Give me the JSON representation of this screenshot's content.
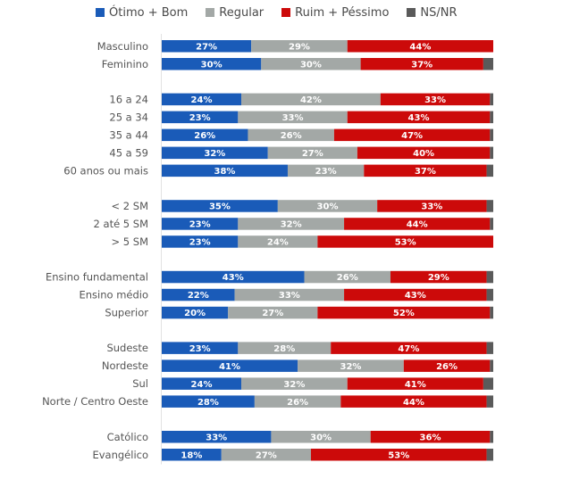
{
  "chart_data": {
    "type": "bar",
    "orientation": "horizontal",
    "stacked": true,
    "normalized": true,
    "title": "",
    "xlabel": "",
    "ylabel": "",
    "xlim": [
      0,
      100
    ],
    "grid": false,
    "legend_position": "top",
    "value_suffix": "%",
    "series": [
      {
        "name": "Ótimo + Bom",
        "color": "#1a5bb8",
        "show_labels": true
      },
      {
        "name": "Regular",
        "color": "#a3a8a6",
        "show_labels": true
      },
      {
        "name": "Ruim + Péssimo",
        "color": "#cc0a0a",
        "show_labels": true
      },
      {
        "name": "NS/NR",
        "color": "#5a5a5a",
        "show_labels": false
      }
    ],
    "groups": [
      {
        "rows": [
          {
            "label": "Masculino",
            "values": [
              27,
              29,
              44
            ]
          },
          {
            "label": "Feminino",
            "values": [
              30,
              30,
              37
            ]
          }
        ]
      },
      {
        "rows": [
          {
            "label": "16 a 24",
            "values": [
              24,
              42,
              33
            ]
          },
          {
            "label": "25 a 34",
            "values": [
              23,
              33,
              43
            ]
          },
          {
            "label": "35 a 44",
            "values": [
              26,
              26,
              47
            ]
          },
          {
            "label": "45 a 59",
            "values": [
              32,
              27,
              40
            ]
          },
          {
            "label": "60 anos ou mais",
            "values": [
              38,
              23,
              37
            ]
          }
        ]
      },
      {
        "rows": [
          {
            "label": "< 2 SM",
            "values": [
              35,
              30,
              33
            ]
          },
          {
            "label": "2 até 5 SM",
            "values": [
              23,
              32,
              44
            ]
          },
          {
            "label": "> 5 SM",
            "values": [
              23,
              24,
              53
            ]
          }
        ]
      },
      {
        "rows": [
          {
            "label": "Ensino fundamental",
            "values": [
              43,
              26,
              29
            ]
          },
          {
            "label": "Ensino médio",
            "values": [
              22,
              33,
              43
            ]
          },
          {
            "label": "Superior",
            "values": [
              20,
              27,
              52
            ]
          }
        ]
      },
      {
        "rows": [
          {
            "label": "Sudeste",
            "values": [
              23,
              28,
              47
            ]
          },
          {
            "label": "Nordeste",
            "values": [
              41,
              32,
              26
            ]
          },
          {
            "label": "Sul",
            "values": [
              24,
              32,
              41
            ]
          },
          {
            "label": "Norte / Centro Oeste",
            "values": [
              28,
              26,
              44
            ]
          }
        ]
      },
      {
        "rows": [
          {
            "label": "Católico",
            "values": [
              33,
              30,
              36
            ]
          },
          {
            "label": "Evangélico",
            "values": [
              18,
              27,
              53
            ]
          }
        ]
      }
    ],
    "notes": "NS/NR segment = remainder to 100% (not labeled)"
  }
}
